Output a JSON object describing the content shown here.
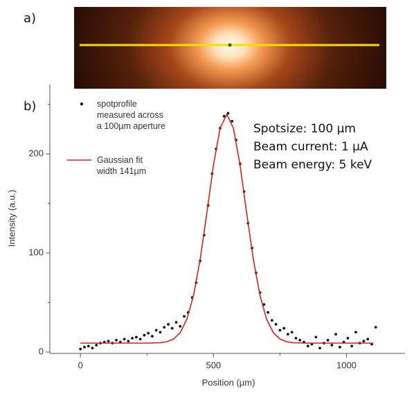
{
  "chart_data": {
    "type": "scatter",
    "panel_labels": [
      "a)",
      "b)"
    ],
    "x_label": "Position (µm)",
    "y_label": "Intensity (a.u.)",
    "annotations": [
      "Spotsize: 100 µm",
      "Beam current: 1 µA",
      "Beam energy: 5 keV"
    ],
    "xlim": [
      -115,
      1220
    ],
    "ylim": [
      0,
      270
    ],
    "xticks": [
      0,
      500,
      1000
    ],
    "yticks": [
      0,
      100,
      200
    ],
    "xminorticks": [
      250,
      750
    ],
    "yminorticks": [
      50,
      150,
      250
    ],
    "series": [
      {
        "name": "spotprofile\nmeasured across\na 100µm aperture",
        "type": "scatter",
        "color": "#111111",
        "x": [
          0,
          15,
          30,
          45,
          60,
          75,
          90,
          105,
          120,
          135,
          150,
          165,
          180,
          195,
          210,
          225,
          240,
          255,
          270,
          285,
          300,
          315,
          330,
          345,
          360,
          375,
          390,
          405,
          420,
          435,
          450,
          465,
          480,
          495,
          510,
          525,
          540,
          555,
          570,
          585,
          600,
          615,
          630,
          645,
          660,
          675,
          690,
          705,
          720,
          735,
          750,
          765,
          780,
          795,
          810,
          825,
          840,
          855,
          870,
          885,
          900,
          915,
          930,
          945,
          960,
          975,
          990,
          1005,
          1020,
          1035,
          1050,
          1065,
          1080,
          1095,
          1110
        ],
        "values": [
          3,
          5,
          6,
          4,
          7,
          9,
          10,
          11,
          9,
          12,
          10,
          13,
          11,
          14,
          15,
          13,
          17,
          19,
          16,
          22,
          20,
          25,
          28,
          24,
          30,
          26,
          36,
          40,
          55,
          70,
          92,
          118,
          148,
          180,
          205,
          226,
          238,
          241,
          233,
          214,
          190,
          162,
          130,
          105,
          80,
          60,
          48,
          40,
          32,
          28,
          22,
          24,
          18,
          20,
          14,
          12,
          10,
          6,
          8,
          15,
          4,
          9,
          12,
          7,
          18,
          5,
          10,
          14,
          6,
          20,
          9,
          11,
          13,
          8,
          25
        ]
      },
      {
        "name": "Gaussian fit\nwidth 141µm",
        "type": "line",
        "color": "#d42020",
        "x": [
          0,
          50,
          100,
          150,
          200,
          250,
          300,
          325,
          350,
          375,
          400,
          425,
          450,
          475,
          500,
          525,
          550,
          575,
          600,
          625,
          650,
          675,
          700,
          725,
          750,
          775,
          800,
          850,
          900,
          950,
          1000,
          1050,
          1100
        ],
        "values": [
          9,
          9,
          9,
          9,
          9,
          9,
          9.4,
          10.4,
          13.1,
          19.6,
          33.1,
          57,
          93.5,
          140,
          188.7,
          225.9,
          240,
          225.9,
          188.7,
          140,
          93.5,
          57,
          33.1,
          19.6,
          13.1,
          10.4,
          9.4,
          9,
          9,
          9,
          9,
          9,
          9
        ]
      }
    ]
  }
}
